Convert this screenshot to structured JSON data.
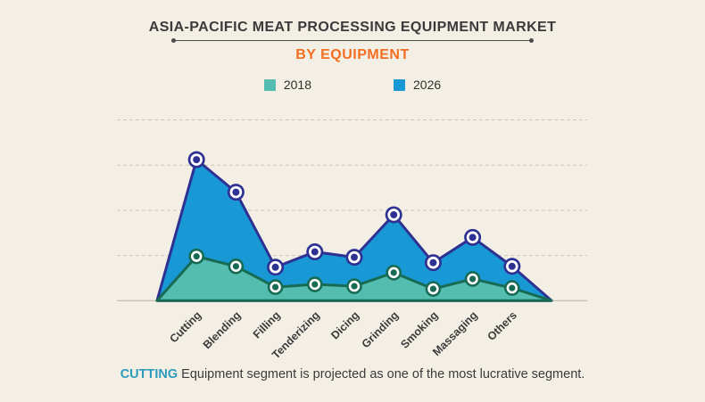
{
  "chart_data": {
    "type": "area",
    "title": "ASIA-PACIFIC MEAT PROCESSING EQUIPMENT MARKET",
    "subtitle": "BY EQUIPMENT",
    "categories": [
      "Cutting",
      "Blending",
      "Filling",
      "Tenderizing",
      "Dicing",
      "Grinding",
      "Smoking",
      "Massaging",
      "Others"
    ],
    "series": [
      {
        "name": "2018",
        "color": "#55bdb0",
        "edge_color": "#176b53",
        "values": [
          24.5,
          19,
          7.5,
          9,
          8,
          15.5,
          6.5,
          12,
          7
        ]
      },
      {
        "name": "2026",
        "color": "#1899d6",
        "edge_color": "#2e3192",
        "values": [
          78,
          60,
          18.5,
          27,
          24,
          47.5,
          21,
          35,
          19
        ]
      }
    ],
    "xlabel": "",
    "ylabel": "",
    "ylim": [
      0,
      100
    ],
    "gridline_step": 25,
    "grid": "horizontal-dashed",
    "legend_position": "top",
    "note": "y-axis unlabeled; values estimated in index units; both areas start and end at zero at plot edges"
  },
  "theme": {
    "background": "#f4efe5",
    "title_color": "#3b3a3b",
    "accent_orange": "#f26e21",
    "highlight_teal": "#2c9bba",
    "gridline_color": "#ccc8bc",
    "axis_line_color": "#b7b3a8",
    "axis_label_color": "#3b3b3b"
  },
  "footer": {
    "highlight": "CUTTING",
    "text": "Equipment segment is projected as one of the most lucrative segment."
  }
}
